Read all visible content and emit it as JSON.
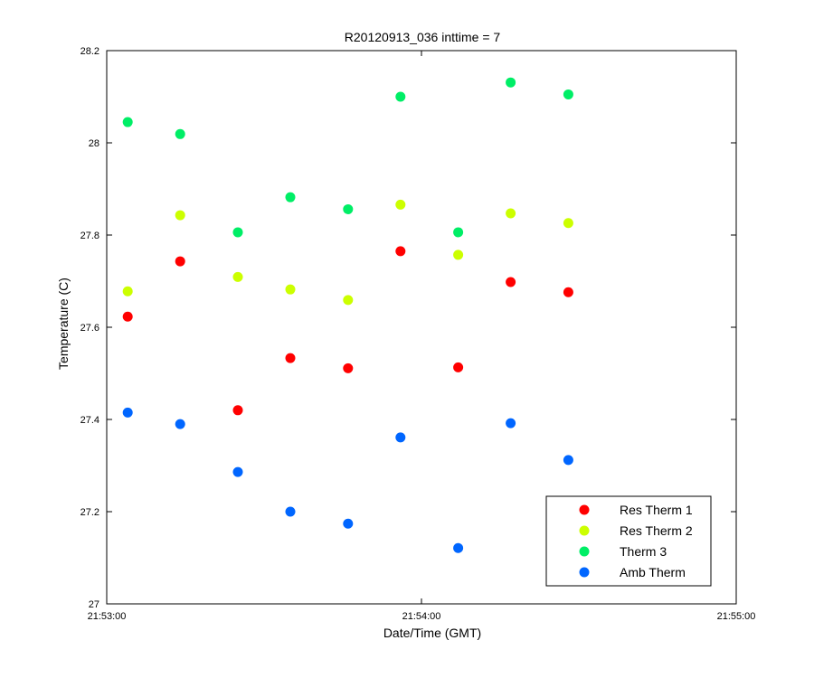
{
  "chart_data": {
    "type": "scatter",
    "title": "R20120913_036 inttime = 7",
    "xlabel": "Date/Time (GMT)",
    "ylabel": "Temperature (C)",
    "xlim": [
      "21:53:00",
      "21:55:00"
    ],
    "ylim": [
      27,
      28.2
    ],
    "x_ticks": [
      "21:53:00",
      "21:54:00",
      "21:55:00"
    ],
    "y_ticks": [
      "27",
      "27.2",
      "27.4",
      "27.6",
      "27.8",
      "28",
      "28.2"
    ],
    "x": [
      "21:53:04",
      "21:53:14",
      "21:53:25",
      "21:53:35",
      "21:53:46",
      "21:53:56",
      "21:54:07",
      "21:54:17",
      "21:54:28"
    ],
    "series": [
      {
        "name": "Res Therm 1",
        "color": "#ff0000",
        "values": [
          27.623,
          27.743,
          27.42,
          27.533,
          27.511,
          27.765,
          27.513,
          27.698,
          27.676
        ]
      },
      {
        "name": "Res Therm 2",
        "color": "#ccff00",
        "values": [
          27.678,
          27.843,
          27.709,
          27.682,
          27.659,
          27.866,
          27.757,
          27.847,
          27.826
        ]
      },
      {
        "name": "Therm 3",
        "color": "#00ee66",
        "values": [
          28.045,
          28.019,
          27.806,
          27.882,
          27.856,
          28.1,
          27.806,
          28.131,
          28.105
        ]
      },
      {
        "name": "Amb Therm",
        "color": "#0066ff",
        "values": [
          27.415,
          27.39,
          27.286,
          27.2,
          27.174,
          27.361,
          27.121,
          27.392,
          27.312
        ]
      }
    ],
    "grid": false,
    "legend_position": "bottom-right"
  }
}
